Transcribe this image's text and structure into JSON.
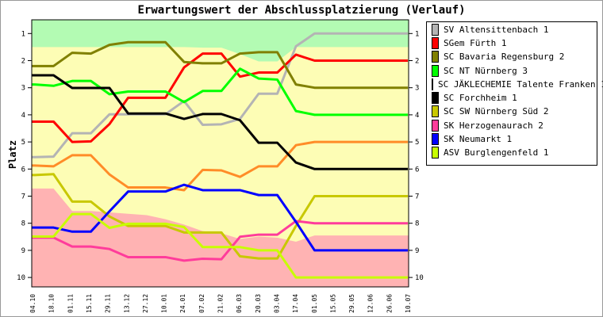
{
  "chart_data": {
    "type": "line",
    "title": "Erwartungswert der Abschlussplatzierung (Verlauf)",
    "ylabel": "Platz",
    "xlabel": "",
    "ylim": [
      10,
      1
    ],
    "y_ticks": [
      "1",
      "2",
      "3",
      "4",
      "5",
      "6",
      "7",
      "8",
      "9",
      "10"
    ],
    "x": [
      "04.10",
      "18.10",
      "01.11",
      "15.11",
      "29.11",
      "13.12",
      "27.12",
      "10.01",
      "24.01",
      "07.02",
      "21.02",
      "06.03",
      "20.03",
      "03.04",
      "17.04",
      "01.05",
      "15.05",
      "29.05",
      "12.06",
      "26.06",
      "10.07"
    ],
    "promotion_zone_boundary": [
      1.5,
      1.5,
      1.5,
      1.5,
      1.5,
      1.5,
      1.5,
      1.5,
      1.5,
      1.52,
      1.52,
      1.76,
      2.03,
      2.03,
      1.5,
      1.5,
      1.5,
      1.5,
      1.5,
      1.5,
      1.5
    ],
    "relegation_zone_boundary": [
      6.72,
      6.72,
      7.55,
      7.55,
      7.6,
      7.65,
      7.7,
      7.85,
      8.05,
      8.29,
      8.37,
      8.58,
      8.49,
      8.53,
      8.68,
      8.45,
      8.45,
      8.45,
      8.45,
      8.45,
      8.45
    ],
    "series": [
      {
        "name": "SV Altensittenbach 1",
        "color": "#b4b4b4",
        "values": [
          5.56,
          5.54,
          4.68,
          4.68,
          3.98,
          3.98,
          3.98,
          3.98,
          3.49,
          4.37,
          4.35,
          4.15,
          3.22,
          3.22,
          1.47,
          1,
          1,
          1,
          1,
          1,
          1
        ]
      },
      {
        "name": "SGem Fürth 1",
        "color": "#ff0000",
        "values": [
          4.25,
          4.25,
          5.0,
          4.98,
          4.34,
          3.37,
          3.37,
          3.37,
          2.25,
          1.74,
          1.74,
          2.59,
          2.44,
          2.44,
          1.78,
          2,
          2,
          2,
          2,
          2,
          2
        ]
      },
      {
        "name": "SC Bavaria Regensburg 2",
        "color": "#808000",
        "values": [
          2.2,
          2.2,
          1.71,
          1.74,
          1.42,
          1.32,
          1.32,
          1.32,
          2.05,
          2.1,
          2.1,
          1.74,
          1.69,
          1.69,
          2.88,
          3,
          3,
          3,
          3,
          3,
          3
        ]
      },
      {
        "name": "SC NT Nürnberg 3",
        "color": "#00ff00",
        "values": [
          2.88,
          2.93,
          2.75,
          2.75,
          3.24,
          3.14,
          3.14,
          3.14,
          3.53,
          3.12,
          3.12,
          2.3,
          2.66,
          2.7,
          3.86,
          4,
          4,
          4,
          4,
          4,
          4
        ]
      },
      {
        "name": "SC JÄKLECHEMIE Talente Franken 1",
        "color": "#ff8c28",
        "values": [
          5.87,
          5.9,
          5.49,
          5.49,
          6.2,
          6.68,
          6.68,
          6.68,
          6.78,
          6.03,
          6.05,
          6.29,
          5.9,
          5.9,
          5.12,
          5,
          5,
          5,
          5,
          5,
          5
        ]
      },
      {
        "name": "SC Forchheim 1",
        "color": "#000000",
        "values": [
          2.54,
          2.54,
          3.01,
          3.01,
          3.01,
          3.95,
          3.95,
          3.95,
          4.15,
          3.97,
          3.97,
          4.2,
          5.03,
          5.03,
          5.76,
          6,
          6,
          6,
          6,
          6,
          6
        ]
      },
      {
        "name": "SC SW Nürnberg Süd 2",
        "color": "#c8c800",
        "values": [
          6.22,
          6.19,
          7.2,
          7.2,
          7.75,
          8.1,
          8.1,
          8.1,
          8.34,
          8.34,
          8.34,
          9.22,
          9.3,
          9.3,
          8.1,
          7,
          7,
          7,
          7,
          7,
          7
        ]
      },
      {
        "name": "SK Herzogenaurach 2",
        "color": "#ff3c9b",
        "values": [
          8.53,
          8.53,
          8.86,
          8.86,
          8.95,
          9.25,
          9.25,
          9.25,
          9.38,
          9.31,
          9.33,
          8.5,
          8.42,
          8.42,
          7.92,
          8,
          8,
          8,
          8,
          8,
          8
        ]
      },
      {
        "name": "SK Neumarkt 1",
        "color": "#0000ff",
        "values": [
          8.16,
          8.16,
          8.31,
          8.31,
          7.56,
          6.83,
          6.83,
          6.83,
          6.58,
          6.78,
          6.78,
          6.78,
          6.96,
          6.96,
          7.95,
          9,
          9,
          9,
          9,
          9,
          9
        ]
      },
      {
        "name": "ASV Burglengenfeld 1",
        "color": "#c8ff00",
        "values": [
          8.49,
          8.49,
          7.66,
          7.66,
          8.17,
          8.02,
          8.02,
          8.02,
          8.14,
          8.88,
          8.88,
          8.88,
          9.0,
          9.0,
          10,
          10,
          10,
          10,
          10,
          10,
          10
        ]
      }
    ],
    "legend": "right",
    "zone_colors": {
      "promotion": "#b3fbb3",
      "middle": "#fdfdb5",
      "relegation": "#ffb3b3"
    }
  }
}
